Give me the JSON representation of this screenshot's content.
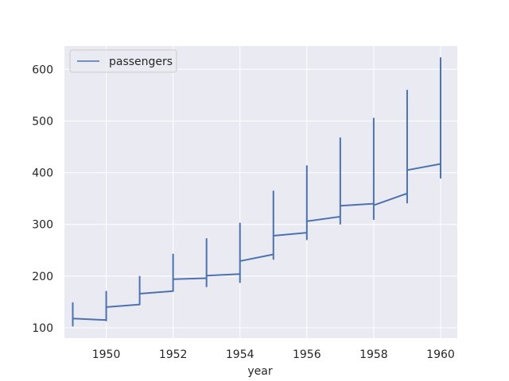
{
  "chart_data": {
    "type": "line",
    "title": "",
    "xlabel": "year",
    "ylabel": "",
    "xlim": [
      1948.75,
      1960.5
    ],
    "ylim": [
      80,
      645
    ],
    "xticks": [
      1950,
      1952,
      1954,
      1956,
      1958,
      1960
    ],
    "yticks": [
      100,
      200,
      300,
      400,
      500,
      600
    ],
    "grid": true,
    "legend_position": "top-left",
    "colors": {
      "series": "#4c72b0",
      "plot_bg": "#eaeaf2",
      "grid": "#ffffff"
    },
    "series": [
      {
        "name": "passengers",
        "x": [
          1949,
          1949,
          1949,
          1949,
          1949,
          1949,
          1949,
          1949,
          1949,
          1949,
          1949,
          1949,
          1950,
          1950,
          1950,
          1950,
          1950,
          1950,
          1950,
          1950,
          1950,
          1950,
          1950,
          1950,
          1951,
          1951,
          1951,
          1951,
          1951,
          1951,
          1951,
          1951,
          1951,
          1951,
          1951,
          1951,
          1952,
          1952,
          1952,
          1952,
          1952,
          1952,
          1952,
          1952,
          1952,
          1952,
          1952,
          1952,
          1953,
          1953,
          1953,
          1953,
          1953,
          1953,
          1953,
          1953,
          1953,
          1953,
          1953,
          1953,
          1954,
          1954,
          1954,
          1954,
          1954,
          1954,
          1954,
          1954,
          1954,
          1954,
          1954,
          1954,
          1955,
          1955,
          1955,
          1955,
          1955,
          1955,
          1955,
          1955,
          1955,
          1955,
          1955,
          1955,
          1956,
          1956,
          1956,
          1956,
          1956,
          1956,
          1956,
          1956,
          1956,
          1956,
          1956,
          1956,
          1957,
          1957,
          1957,
          1957,
          1957,
          1957,
          1957,
          1957,
          1957,
          1957,
          1957,
          1957,
          1958,
          1958,
          1958,
          1958,
          1958,
          1958,
          1958,
          1958,
          1958,
          1958,
          1958,
          1958,
          1959,
          1959,
          1959,
          1959,
          1959,
          1959,
          1959,
          1959,
          1959,
          1959,
          1959,
          1959,
          1960,
          1960,
          1960,
          1960,
          1960,
          1960,
          1960,
          1960,
          1960,
          1960,
          1960,
          1960
        ],
        "y": [
          112,
          118,
          132,
          129,
          121,
          135,
          148,
          148,
          136,
          119,
          104,
          118,
          115,
          126,
          141,
          135,
          125,
          149,
          170,
          170,
          158,
          133,
          114,
          140,
          145,
          150,
          178,
          163,
          172,
          178,
          199,
          199,
          184,
          162,
          146,
          166,
          171,
          180,
          193,
          181,
          183,
          218,
          230,
          242,
          209,
          191,
          172,
          194,
          196,
          196,
          236,
          235,
          229,
          243,
          264,
          272,
          237,
          211,
          180,
          201,
          204,
          188,
          235,
          227,
          234,
          264,
          302,
          293,
          259,
          229,
          203,
          229,
          242,
          233,
          267,
          269,
          270,
          315,
          364,
          347,
          312,
          274,
          237,
          278,
          284,
          277,
          317,
          313,
          318,
          374,
          413,
          405,
          355,
          306,
          271,
          306,
          315,
          301,
          356,
          348,
          355,
          422,
          465,
          467,
          404,
          347,
          305,
          336,
          340,
          318,
          362,
          348,
          363,
          435,
          491,
          505,
          404,
          359,
          310,
          337,
          360,
          342,
          406,
          396,
          420,
          472,
          548,
          559,
          463,
          407,
          362,
          405,
          417,
          391,
          419,
          461,
          472,
          535,
          622,
          606,
          508,
          461,
          390,
          432
        ]
      }
    ]
  }
}
